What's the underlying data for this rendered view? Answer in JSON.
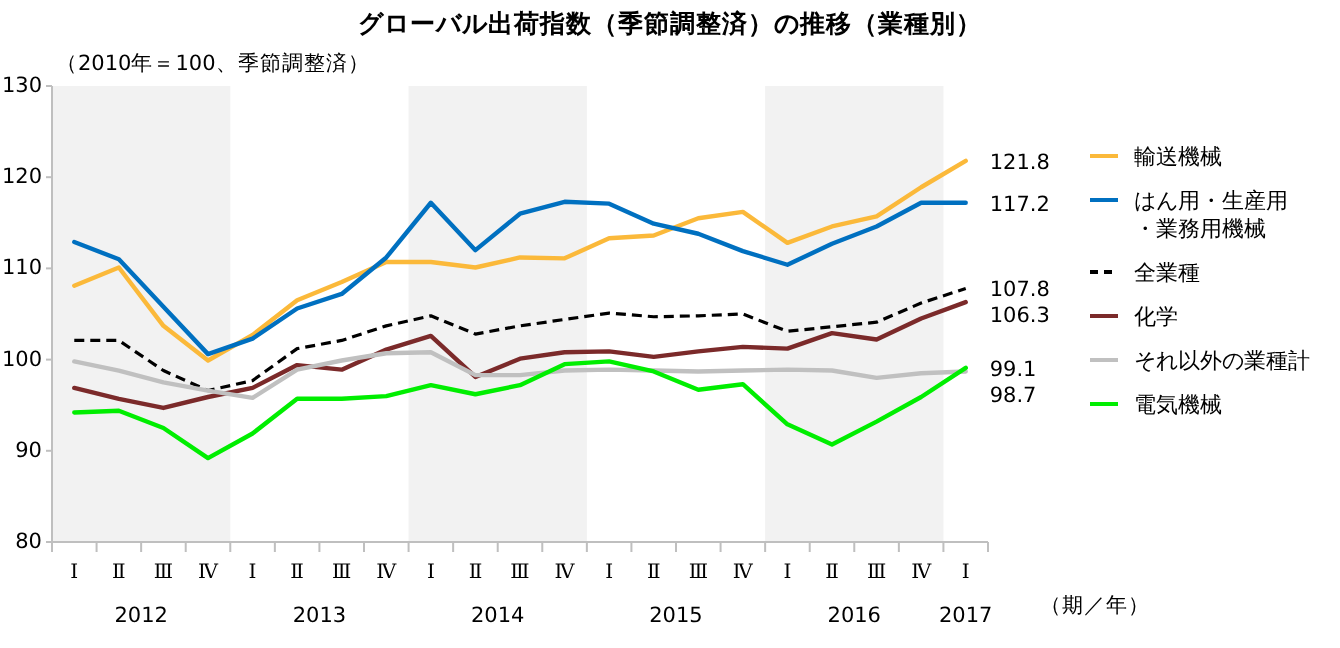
{
  "chart_data": {
    "type": "line",
    "title": "グローバル出荷指数（季節調整済）の推移（業種別）",
    "subtitle": "（2010年＝100、季節調整済）",
    "xlabel": "（期／年）",
    "categories": [
      "Ⅰ",
      "Ⅱ",
      "Ⅲ",
      "Ⅳ",
      "Ⅰ",
      "Ⅱ",
      "Ⅲ",
      "Ⅳ",
      "Ⅰ",
      "Ⅱ",
      "Ⅲ",
      "Ⅳ",
      "Ⅰ",
      "Ⅱ",
      "Ⅲ",
      "Ⅳ",
      "Ⅰ",
      "Ⅱ",
      "Ⅲ",
      "Ⅳ",
      "Ⅰ"
    ],
    "ylim": [
      80,
      130
    ],
    "yticks": [
      80,
      90,
      100,
      110,
      120,
      130
    ],
    "legend": "right",
    "annotations": [
      "2012",
      "2013",
      "2014",
      "2015",
      "2016",
      "2017"
    ],
    "series": [
      {
        "name": "輸送機械",
        "color": "#fbb93a",
        "values": [
          108.1,
          110.1,
          103.7,
          99.9,
          102.7,
          106.5,
          108.5,
          110.7,
          110.7,
          110.1,
          111.2,
          111.1,
          113.3,
          113.6,
          115.5,
          116.2,
          112.8,
          114.6,
          115.7,
          118.9,
          121.8
        ],
        "value_labels": [
          null,
          null,
          null,
          null,
          null,
          null,
          null,
          null,
          null,
          null,
          null,
          null,
          null,
          null,
          null,
          null,
          null,
          null,
          null,
          null,
          "121.8"
        ]
      },
      {
        "name": "はん用・生産用・業務用機械",
        "color": "#0070c0",
        "values": [
          112.9,
          111.0,
          105.8,
          100.6,
          102.3,
          105.6,
          107.2,
          111.2,
          117.2,
          112.0,
          116.0,
          117.3,
          117.1,
          114.9,
          113.8,
          111.9,
          110.4,
          112.7,
          114.6,
          117.2,
          117.2
        ],
        "value_labels": [
          null,
          null,
          null,
          null,
          null,
          null,
          null,
          null,
          null,
          null,
          null,
          null,
          null,
          null,
          null,
          null,
          null,
          null,
          null,
          null,
          "117.2"
        ]
      },
      {
        "name": "全業種",
        "color": "#000000",
        "line_style": "dashed",
        "values": [
          102.1,
          102.1,
          98.8,
          96.6,
          97.7,
          101.2,
          102.1,
          103.7,
          104.8,
          102.8,
          103.7,
          104.4,
          105.1,
          104.7,
          104.8,
          105.0,
          103.1,
          103.6,
          104.1,
          106.2,
          107.8
        ],
        "value_labels": [
          null,
          null,
          null,
          null,
          null,
          null,
          null,
          null,
          null,
          null,
          null,
          null,
          null,
          null,
          null,
          null,
          null,
          null,
          null,
          null,
          "107.8"
        ]
      },
      {
        "name": "化学",
        "color": "#7b2a2a",
        "values": [
          96.9,
          95.7,
          94.7,
          95.9,
          96.9,
          99.4,
          98.9,
          101.1,
          102.6,
          98.1,
          100.1,
          100.8,
          100.9,
          100.3,
          100.9,
          101.4,
          101.2,
          102.9,
          102.2,
          104.5,
          106.3
        ],
        "value_labels": [
          null,
          null,
          null,
          null,
          null,
          null,
          null,
          null,
          null,
          null,
          null,
          null,
          null,
          null,
          null,
          null,
          null,
          null,
          null,
          null,
          "106.3"
        ]
      },
      {
        "name": "それ以外の業種計",
        "color": "#c0c0c0",
        "values": [
          99.8,
          98.8,
          97.5,
          96.6,
          95.8,
          98.9,
          99.9,
          100.7,
          100.8,
          98.3,
          98.3,
          98.8,
          98.9,
          98.8,
          98.7,
          98.8,
          98.9,
          98.8,
          98.0,
          98.5,
          98.7
        ],
        "value_labels": [
          null,
          null,
          null,
          null,
          null,
          null,
          null,
          null,
          null,
          null,
          null,
          null,
          null,
          null,
          null,
          null,
          null,
          null,
          null,
          null,
          "98.7"
        ]
      },
      {
        "name": "電気機械",
        "color": "#00ee00",
        "values": [
          94.2,
          94.4,
          92.5,
          89.2,
          91.9,
          95.7,
          95.7,
          96.0,
          97.2,
          96.2,
          97.2,
          99.5,
          99.8,
          98.7,
          96.7,
          97.3,
          92.9,
          90.7,
          93.2,
          95.9,
          99.1
        ],
        "value_labels": [
          null,
          null,
          null,
          null,
          null,
          null,
          null,
          null,
          null,
          null,
          null,
          null,
          null,
          null,
          null,
          null,
          null,
          null,
          null,
          null,
          "99.1"
        ]
      }
    ]
  }
}
